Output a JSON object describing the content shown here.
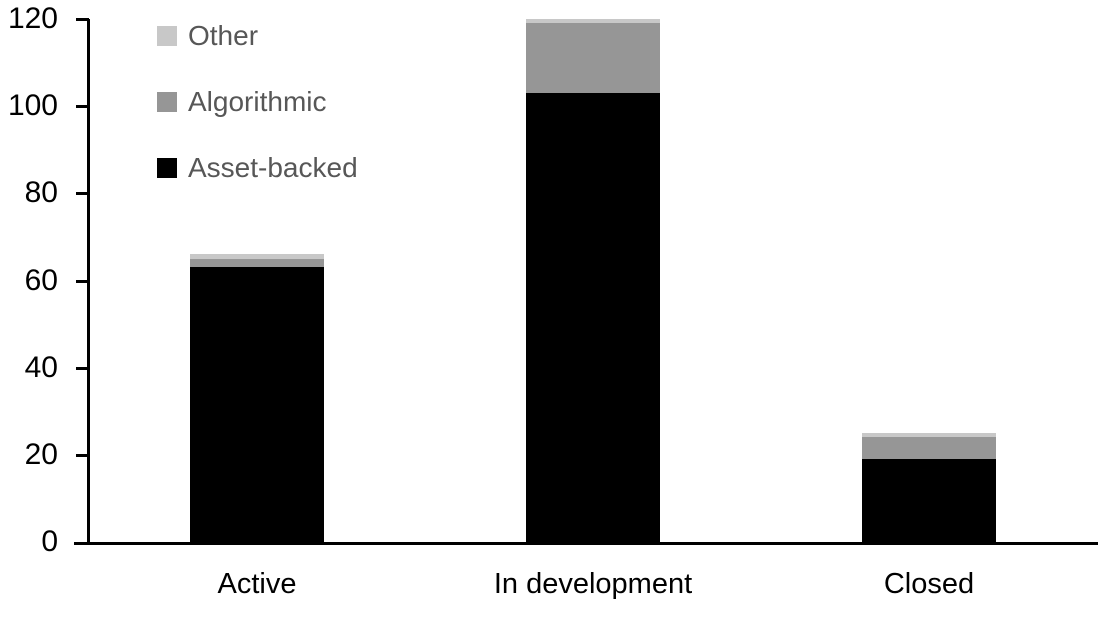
{
  "chart_data": {
    "type": "bar",
    "stacked": true,
    "title": "",
    "categories": [
      "Active",
      "In development",
      "Closed"
    ],
    "series": [
      {
        "name": "Asset-backed",
        "color": "#000000",
        "values": [
          63,
          103,
          19
        ]
      },
      {
        "name": "Algorithmic",
        "color": "#969696",
        "values": [
          2,
          16,
          5
        ]
      },
      {
        "name": "Other",
        "color": "#c8c8c8",
        "values": [
          1,
          1,
          1
        ]
      }
    ],
    "stack_totals": [
      66,
      120,
      25
    ],
    "ylim": [
      0,
      120
    ],
    "yticks": [
      0,
      20,
      40,
      60,
      80,
      100,
      120
    ],
    "xlabel": "",
    "ylabel": "",
    "grid": false,
    "legend_position": "top-left",
    "legend_order_top_to_bottom": [
      "Other",
      "Algorithmic",
      "Asset-backed"
    ],
    "colors": {
      "axis": "#000000",
      "tick_label_text": "#000000",
      "category_label_text": "#000000",
      "legend_text": "#575757",
      "background": "#ffffff"
    }
  }
}
